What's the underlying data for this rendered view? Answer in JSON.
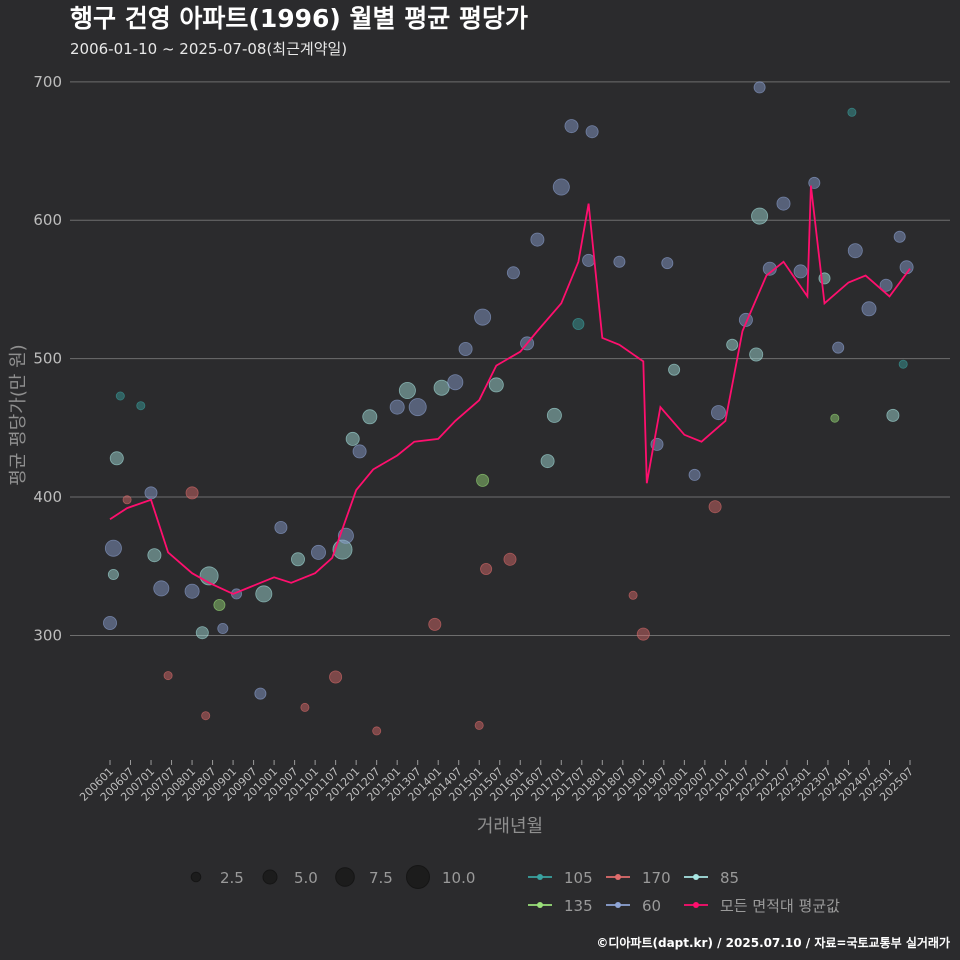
{
  "chart_data": {
    "type": "scatter",
    "title": "행구 건영 아파트(1996) 월별 평균 평당가",
    "subtitle": "2006-01-10 ~ 2025-07-08(최근계약일)",
    "xlabel": "거래년월",
    "ylabel": "평균 평당가(만 원)",
    "x_range": [
      "2006-01",
      "2025-07"
    ],
    "ylim": [
      210,
      710
    ],
    "yticks": [
      300,
      400,
      500,
      600,
      700
    ],
    "xticks": [
      "200601",
      "200607",
      "200701",
      "200707",
      "200801",
      "200807",
      "200901",
      "200907",
      "201001",
      "201007",
      "201101",
      "201107",
      "201201",
      "201207",
      "201301",
      "201307",
      "201401",
      "201407",
      "201501",
      "201507",
      "201601",
      "201607",
      "201701",
      "201707",
      "201801",
      "201807",
      "201901",
      "201907",
      "202001",
      "202007",
      "202101",
      "202107",
      "202201",
      "202207",
      "202301",
      "202307",
      "202401",
      "202407",
      "202501",
      "202507"
    ],
    "grid": true,
    "size_legend": {
      "labels": [
        "2.5",
        "5.0",
        "7.5",
        "10.0"
      ],
      "values": [
        2.5,
        5.0,
        7.5,
        10.0
      ]
    },
    "series": [
      {
        "name": "105",
        "color": "#3aa3a1"
      },
      {
        "name": "170",
        "color": "#e06c6c"
      },
      {
        "name": "85",
        "color": "#a8e6e3"
      },
      {
        "name": "135",
        "color": "#9be07a"
      },
      {
        "name": "60",
        "color": "#8fa5d6"
      },
      {
        "name": "모든 면적대 평균값",
        "color": "#ff0f6e"
      }
    ],
    "average_line": {
      "name": "모든 면적대 평균값",
      "x": [
        "2006-01",
        "2006-06",
        "2007-01",
        "2007-06",
        "2008-01",
        "2008-06",
        "2009-01",
        "2009-06",
        "2010-01",
        "2010-06",
        "2011-01",
        "2011-06",
        "2012-01",
        "2012-06",
        "2013-01",
        "2013-06",
        "2014-01",
        "2014-06",
        "2015-01",
        "2015-06",
        "2016-01",
        "2016-06",
        "2017-01",
        "2017-06",
        "2017-09",
        "2018-01",
        "2018-06",
        "2019-01",
        "2019-02",
        "2019-06",
        "2020-01",
        "2020-06",
        "2021-01",
        "2021-06",
        "2022-01",
        "2022-06",
        "2023-01",
        "2023-02",
        "2023-06",
        "2024-01",
        "2024-06",
        "2025-01",
        "2025-07"
      ],
      "y": [
        384,
        392,
        398,
        360,
        345,
        338,
        330,
        335,
        342,
        338,
        345,
        356,
        405,
        420,
        430,
        440,
        442,
        455,
        470,
        495,
        505,
        520,
        540,
        570,
        612,
        515,
        510,
        498,
        410,
        465,
        445,
        440,
        455,
        520,
        560,
        570,
        545,
        625,
        540,
        555,
        560,
        545,
        565
      ]
    },
    "scatter_points": [
      {
        "series": "60",
        "x": "2006-02",
        "y": 363,
        "size": 6.5
      },
      {
        "series": "85",
        "x": "2006-03",
        "y": 428,
        "size": 5.0
      },
      {
        "series": "60",
        "x": "2006-01",
        "y": 309,
        "size": 5.0
      },
      {
        "series": "85",
        "x": "2006-02",
        "y": 344,
        "size": 3.5
      },
      {
        "series": "105",
        "x": "2006-04",
        "y": 473,
        "size": 2.5
      },
      {
        "series": "170",
        "x": "2006-06",
        "y": 398,
        "size": 2.5
      },
      {
        "series": "105",
        "x": "2006-10",
        "y": 466,
        "size": 2.5
      },
      {
        "series": "60",
        "x": "2007-01",
        "y": 403,
        "size": 4.5
      },
      {
        "series": "85",
        "x": "2007-02",
        "y": 358,
        "size": 5.0
      },
      {
        "series": "60",
        "x": "2007-04",
        "y": 334,
        "size": 6.0
      },
      {
        "series": "170",
        "x": "2007-06",
        "y": 271,
        "size": 2.5
      },
      {
        "series": "60",
        "x": "2008-01",
        "y": 332,
        "size": 5.5
      },
      {
        "series": "170",
        "x": "2008-01",
        "y": 403,
        "size": 4.5
      },
      {
        "series": "85",
        "x": "2008-04",
        "y": 302,
        "size": 4.5
      },
      {
        "series": "170",
        "x": "2008-05",
        "y": 242,
        "size": 2.5
      },
      {
        "series": "85",
        "x": "2008-06",
        "y": 343,
        "size": 7.5
      },
      {
        "series": "135",
        "x": "2008-09",
        "y": 322,
        "size": 4.0
      },
      {
        "series": "60",
        "x": "2008-10",
        "y": 305,
        "size": 3.5
      },
      {
        "series": "60",
        "x": "2009-02",
        "y": 330,
        "size": 3.5
      },
      {
        "series": "60",
        "x": "2009-09",
        "y": 258,
        "size": 4.0
      },
      {
        "series": "85",
        "x": "2009-10",
        "y": 330,
        "size": 6.5
      },
      {
        "series": "60",
        "x": "2010-03",
        "y": 378,
        "size": 4.5
      },
      {
        "series": "85",
        "x": "2010-08",
        "y": 355,
        "size": 5.0
      },
      {
        "series": "170",
        "x": "2010-10",
        "y": 248,
        "size": 2.5
      },
      {
        "series": "60",
        "x": "2011-02",
        "y": 360,
        "size": 5.5
      },
      {
        "series": "85",
        "x": "2011-09",
        "y": 362,
        "size": 8.0
      },
      {
        "series": "60",
        "x": "2011-10",
        "y": 372,
        "size": 6.0
      },
      {
        "series": "170",
        "x": "2011-07",
        "y": 270,
        "size": 4.5
      },
      {
        "series": "85",
        "x": "2011-12",
        "y": 442,
        "size": 5.0
      },
      {
        "series": "60",
        "x": "2012-02",
        "y": 433,
        "size": 5.0
      },
      {
        "series": "85",
        "x": "2012-05",
        "y": 458,
        "size": 5.5
      },
      {
        "series": "170",
        "x": "2012-07",
        "y": 231,
        "size": 2.5
      },
      {
        "series": "60",
        "x": "2013-01",
        "y": 465,
        "size": 5.5
      },
      {
        "series": "85",
        "x": "2013-04",
        "y": 477,
        "size": 6.5
      },
      {
        "series": "60",
        "x": "2013-07",
        "y": 465,
        "size": 7.0
      },
      {
        "series": "170",
        "x": "2013-12",
        "y": 308,
        "size": 4.5
      },
      {
        "series": "85",
        "x": "2014-02",
        "y": 479,
        "size": 6.0
      },
      {
        "series": "60",
        "x": "2014-06",
        "y": 483,
        "size": 6.0
      },
      {
        "series": "60",
        "x": "2014-09",
        "y": 507,
        "size": 5.0
      },
      {
        "series": "170",
        "x": "2015-01",
        "y": 235,
        "size": 2.5
      },
      {
        "series": "170",
        "x": "2015-03",
        "y": 348,
        "size": 4.0
      },
      {
        "series": "135",
        "x": "2015-02",
        "y": 412,
        "size": 4.5
      },
      {
        "series": "60",
        "x": "2015-02",
        "y": 530,
        "size": 6.5
      },
      {
        "series": "85",
        "x": "2015-06",
        "y": 481,
        "size": 5.5
      },
      {
        "series": "170",
        "x": "2015-10",
        "y": 355,
        "size": 4.5
      },
      {
        "series": "60",
        "x": "2015-11",
        "y": 562,
        "size": 4.5
      },
      {
        "series": "60",
        "x": "2016-03",
        "y": 511,
        "size": 5.0
      },
      {
        "series": "60",
        "x": "2016-06",
        "y": 586,
        "size": 5.0
      },
      {
        "series": "85",
        "x": "2016-09",
        "y": 426,
        "size": 5.0
      },
      {
        "series": "60",
        "x": "2017-01",
        "y": 624,
        "size": 6.5
      },
      {
        "series": "85",
        "x": "2016-11",
        "y": 459,
        "size": 5.5
      },
      {
        "series": "60",
        "x": "2017-04",
        "y": 668,
        "size": 5.0
      },
      {
        "series": "60",
        "x": "2017-10",
        "y": 664,
        "size": 4.5
      },
      {
        "series": "105",
        "x": "2017-06",
        "y": 525,
        "size": 4.0
      },
      {
        "series": "60",
        "x": "2017-09",
        "y": 571,
        "size": 4.5
      },
      {
        "series": "60",
        "x": "2018-06",
        "y": 570,
        "size": 4.0
      },
      {
        "series": "170",
        "x": "2018-10",
        "y": 329,
        "size": 2.5
      },
      {
        "series": "60",
        "x": "2019-05",
        "y": 438,
        "size": 4.5
      },
      {
        "series": "170",
        "x": "2019-01",
        "y": 301,
        "size": 4.5
      },
      {
        "series": "60",
        "x": "2019-08",
        "y": 569,
        "size": 4.0
      },
      {
        "series": "85",
        "x": "2019-10",
        "y": 492,
        "size": 4.0
      },
      {
        "series": "60",
        "x": "2020-04",
        "y": 416,
        "size": 4.0
      },
      {
        "series": "170",
        "x": "2020-10",
        "y": 393,
        "size": 4.5
      },
      {
        "series": "60",
        "x": "2020-11",
        "y": 461,
        "size": 5.5
      },
      {
        "series": "85",
        "x": "2021-03",
        "y": 510,
        "size": 4.0
      },
      {
        "series": "60",
        "x": "2021-07",
        "y": 528,
        "size": 5.0
      },
      {
        "series": "85",
        "x": "2021-11",
        "y": 603,
        "size": 6.5
      },
      {
        "series": "85",
        "x": "2021-10",
        "y": 503,
        "size": 5.0
      },
      {
        "series": "60",
        "x": "2021-11",
        "y": 696,
        "size": 4.0
      },
      {
        "series": "60",
        "x": "2022-02",
        "y": 565,
        "size": 5.0
      },
      {
        "series": "60",
        "x": "2022-06",
        "y": 612,
        "size": 5.0
      },
      {
        "series": "60",
        "x": "2022-11",
        "y": 563,
        "size": 5.0
      },
      {
        "series": "60",
        "x": "2023-03",
        "y": 627,
        "size": 4.0
      },
      {
        "series": "85",
        "x": "2023-06",
        "y": 558,
        "size": 4.0
      },
      {
        "series": "60",
        "x": "2023-10",
        "y": 508,
        "size": 4.0
      },
      {
        "series": "60",
        "x": "2024-03",
        "y": 578,
        "size": 5.5
      },
      {
        "series": "60",
        "x": "2024-07",
        "y": 536,
        "size": 5.5
      },
      {
        "series": "60",
        "x": "2024-12",
        "y": 553,
        "size": 4.5
      },
      {
        "series": "85",
        "x": "2025-02",
        "y": 459,
        "size": 4.5
      },
      {
        "series": "60",
        "x": "2025-04",
        "y": 588,
        "size": 4.0
      },
      {
        "series": "60",
        "x": "2025-06",
        "y": 566,
        "size": 5.0
      },
      {
        "series": "105",
        "x": "2025-05",
        "y": 496,
        "size": 2.5
      },
      {
        "series": "105",
        "x": "2024-02",
        "y": 678,
        "size": 2.5
      },
      {
        "series": "135",
        "x": "2023-09",
        "y": 457,
        "size": 2.5
      }
    ]
  },
  "legend_title": "",
  "caption": "©디아파트(dapt.kr) / 2025.07.10 / 자료=국토교통부 실거래가"
}
